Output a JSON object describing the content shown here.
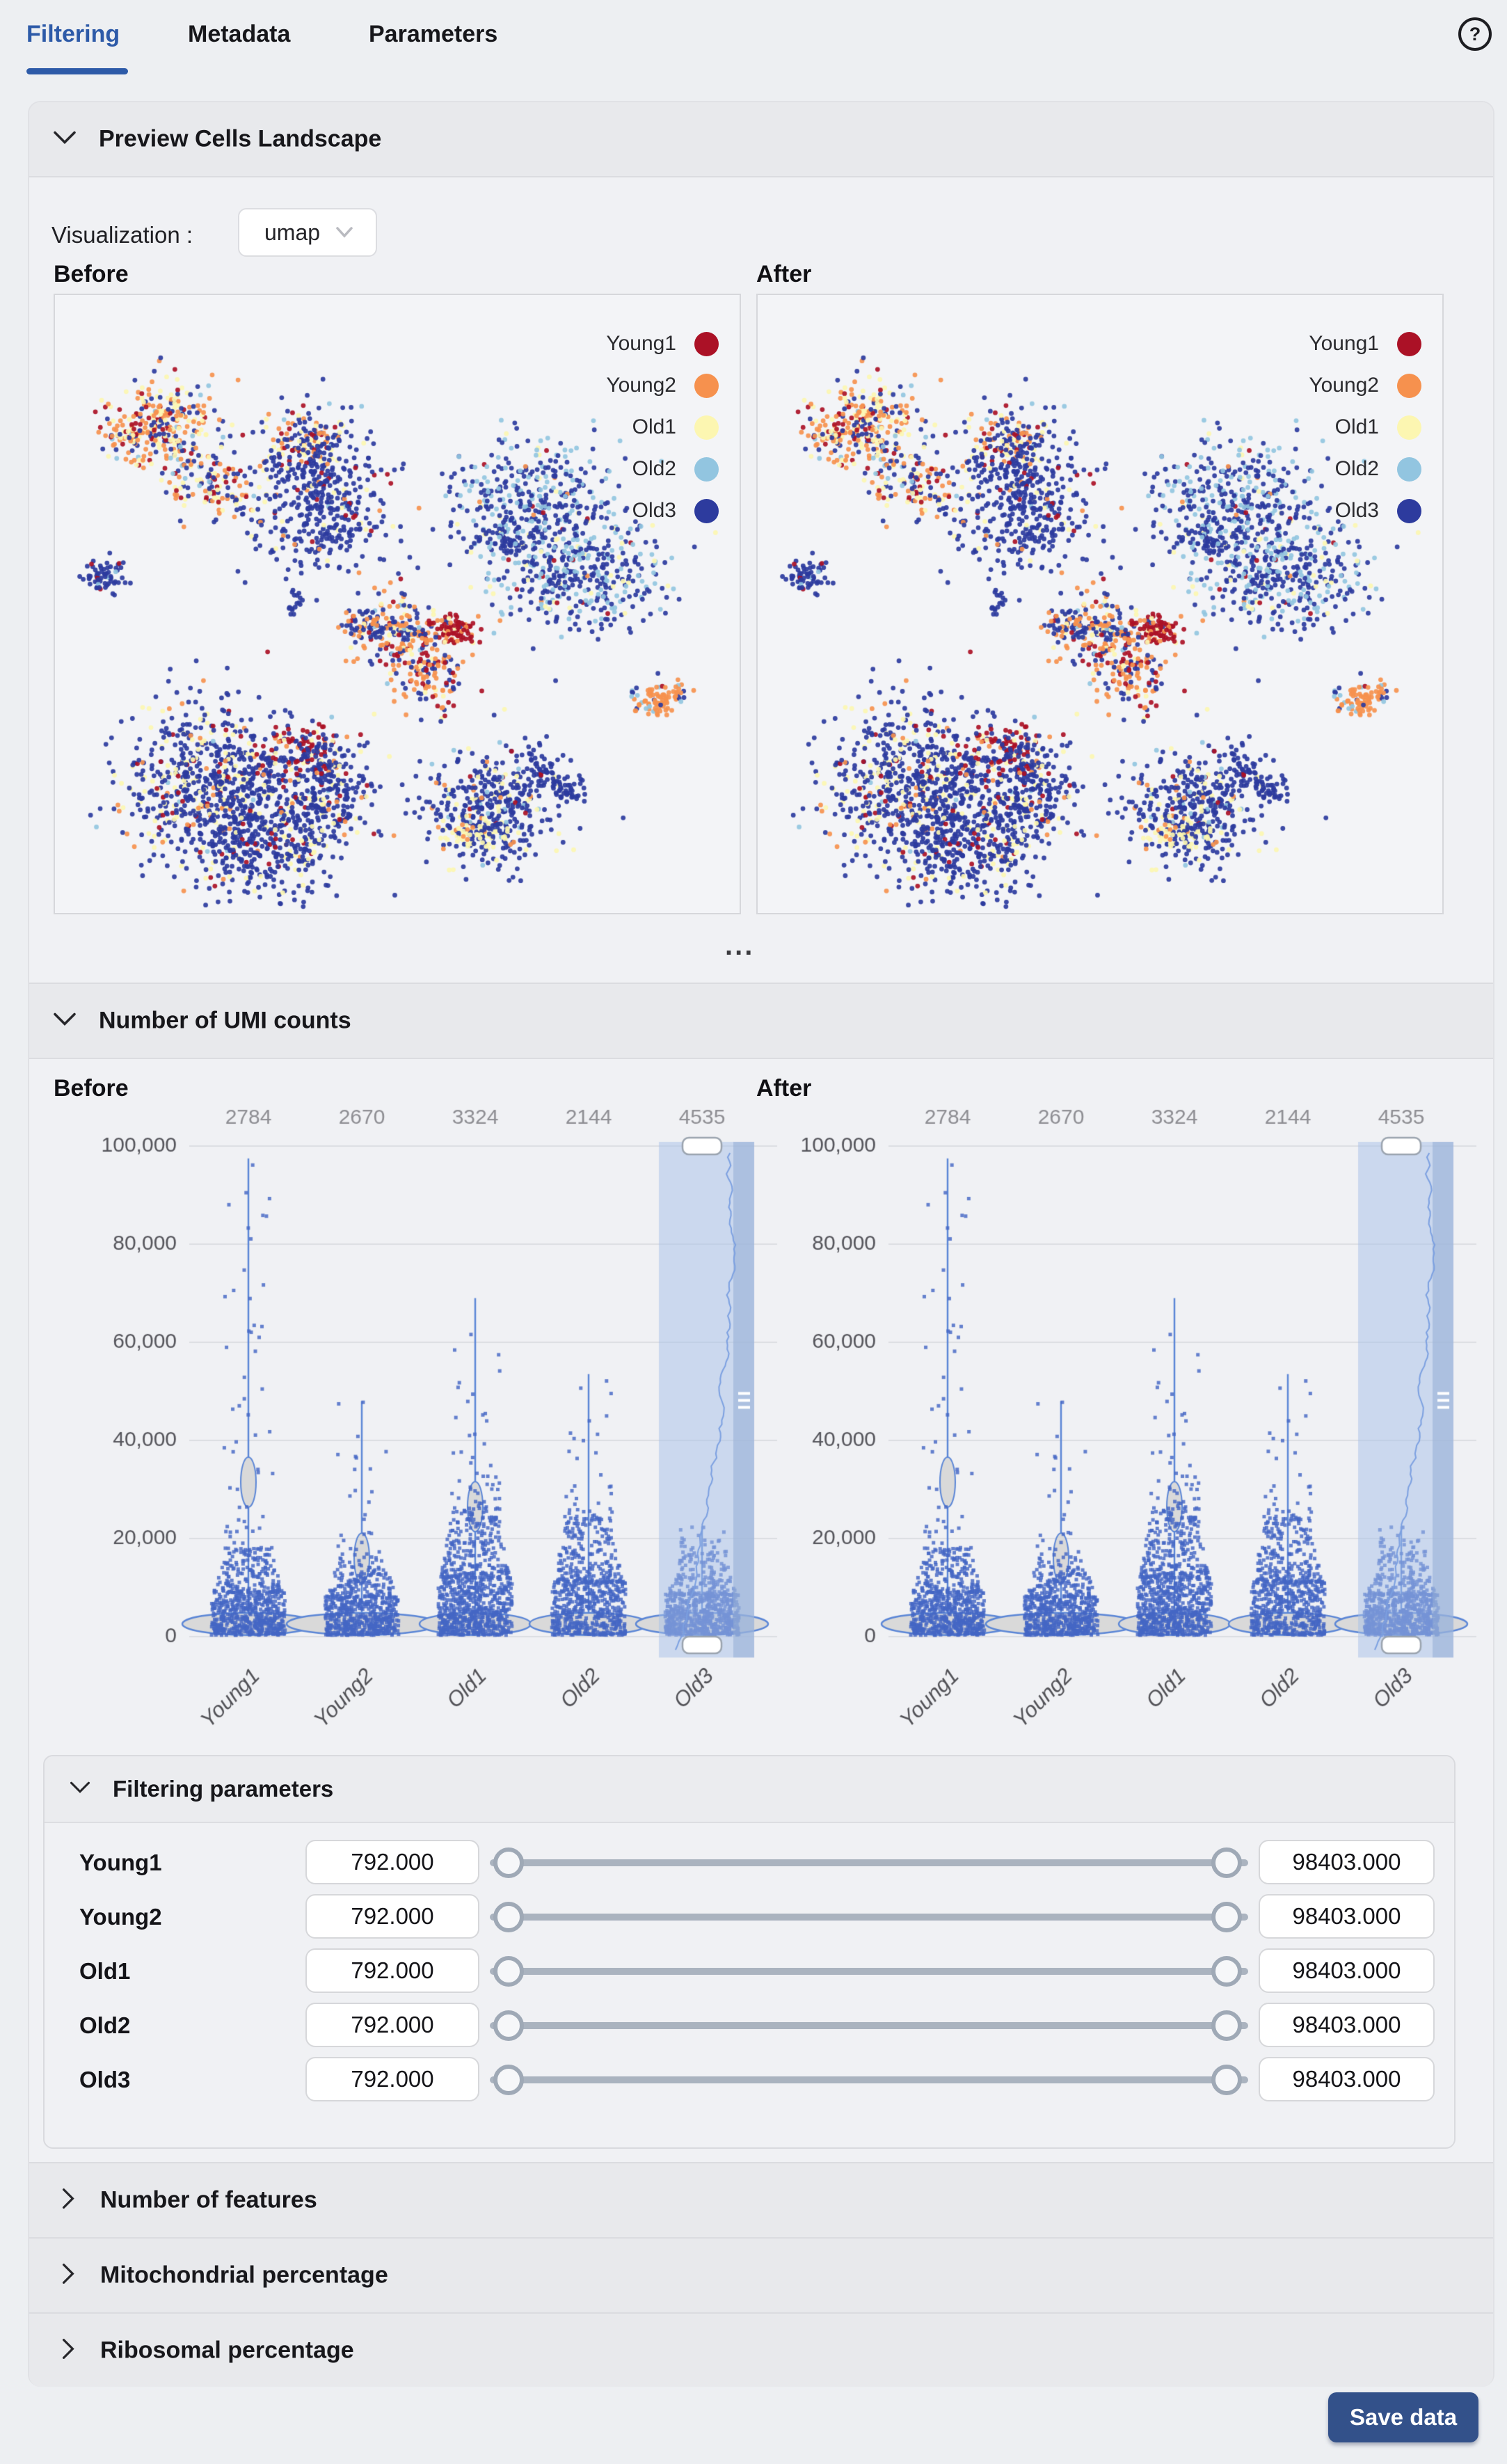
{
  "tabs": [
    {
      "label": "Filtering",
      "active": true
    },
    {
      "label": "Metadata",
      "active": false
    },
    {
      "label": "Parameters",
      "active": false
    }
  ],
  "help_label": "?",
  "sections": {
    "preview": {
      "title": "Preview Cells Landscape",
      "visualization_label": "Visualization :",
      "visualization_value": "umap",
      "before_label": "Before",
      "after_label": "After",
      "ellipsis": "..."
    },
    "umi": {
      "title": "Number of UMI counts",
      "before_label": "Before",
      "after_label": "After"
    },
    "filtering_params": {
      "title": "Filtering parameters",
      "rows": [
        {
          "label": "Young1",
          "min": "792.000",
          "max": "98403.000"
        },
        {
          "label": "Young2",
          "min": "792.000",
          "max": "98403.000"
        },
        {
          "label": "Old1",
          "min": "792.000",
          "max": "98403.000"
        },
        {
          "label": "Old2",
          "min": "792.000",
          "max": "98403.000"
        },
        {
          "label": "Old3",
          "min": "792.000",
          "max": "98403.000"
        }
      ]
    },
    "collapsed": [
      {
        "title": "Number of features"
      },
      {
        "title": "Mitochondrial percentage"
      },
      {
        "title": "Ribosomal percentage"
      }
    ],
    "save_label": "Save data"
  },
  "colors": {
    "accent_blue": "#2d5aa8",
    "scatter_point": "#4466c4",
    "violin_stroke": "#5b86d6",
    "violin_fill": "#d9d9d9",
    "grid": "#dcdde2",
    "tick_text": "#55555b",
    "count_text": "#8e8e93",
    "xlabel_text": "#515156",
    "selection_fill": "rgba(166,192,232,0.50)",
    "selection_track": "rgba(148,173,214,0.55)",
    "selection_line": "#7b9fe0",
    "handle_border": "#9aa3ae",
    "save_bg": "#33518a",
    "umap": {
      "Young1": "#ab1126",
      "Young2": "#f6914e",
      "Old1": "#fcf6b1",
      "Old2": "#92c5e0",
      "Old3": "#2d3b9e"
    }
  },
  "chart_data": [
    {
      "type": "scatter",
      "name": "umap-cells-landscape",
      "panels": [
        "Before",
        "After"
      ],
      "legend": [
        "Young1",
        "Young2",
        "Old1",
        "Old2",
        "Old3"
      ],
      "legend_position": "top-right",
      "clusters": [
        {
          "cx": 0.155,
          "cy": 0.205,
          "sx": 0.042,
          "sy": 0.033,
          "rot": -20,
          "n": 240,
          "mix": {
            "o": 0.3,
            "y": 0.24,
            "r": 0.17,
            "b": 0.24,
            "lb": 0.05
          }
        },
        {
          "cx": 0.225,
          "cy": 0.295,
          "sx": 0.05,
          "sy": 0.024,
          "rot": 35,
          "n": 170,
          "mix": {
            "o": 0.28,
            "y": 0.22,
            "r": 0.15,
            "b": 0.3,
            "lb": 0.05
          }
        },
        {
          "cx": 0.1,
          "cy": 0.225,
          "sx": 0.02,
          "sy": 0.011,
          "rot": 0,
          "n": 40,
          "mix": {
            "o": 0.5,
            "y": 0.2,
            "r": 0.15,
            "b": 0.15
          }
        },
        {
          "cx": 0.37,
          "cy": 0.24,
          "sx": 0.028,
          "sy": 0.024,
          "rot": 0,
          "n": 130,
          "mix": {
            "b": 0.45,
            "o": 0.2,
            "y": 0.2,
            "r": 0.1,
            "lb": 0.05
          }
        },
        {
          "cx": 0.39,
          "cy": 0.335,
          "sx": 0.05,
          "sy": 0.058,
          "rot": 0,
          "n": 430,
          "mix": {
            "b": 0.82,
            "y": 0.06,
            "o": 0.05,
            "r": 0.04,
            "lb": 0.03
          }
        },
        {
          "cx": 0.7,
          "cy": 0.33,
          "sx": 0.058,
          "sy": 0.047,
          "rot": 0,
          "n": 360,
          "mix": {
            "b": 0.58,
            "lb": 0.32,
            "y": 0.05,
            "r": 0.03,
            "o": 0.02
          }
        },
        {
          "cx": 0.76,
          "cy": 0.45,
          "sx": 0.068,
          "sy": 0.05,
          "rot": 0,
          "n": 420,
          "mix": {
            "b": 0.6,
            "lb": 0.32,
            "y": 0.05,
            "r": 0.02,
            "o": 0.01
          }
        },
        {
          "cx": 0.652,
          "cy": 0.4,
          "sx": 0.024,
          "sy": 0.011,
          "rot": 0,
          "n": 45,
          "mix": {
            "b": 0.8,
            "lb": 0.2
          }
        },
        {
          "cx": 0.075,
          "cy": 0.455,
          "sx": 0.017,
          "sy": 0.013,
          "rot": 0,
          "n": 65,
          "mix": {
            "b": 0.88,
            "lb": 0.06,
            "r": 0.06
          }
        },
        {
          "cx": 0.352,
          "cy": 0.5,
          "sx": 0.006,
          "sy": 0.01,
          "rot": 0,
          "n": 16,
          "mix": {
            "b": 1.0
          }
        },
        {
          "cx": 0.5,
          "cy": 0.545,
          "sx": 0.038,
          "sy": 0.033,
          "rot": 0,
          "n": 210,
          "mix": {
            "o": 0.36,
            "b": 0.34,
            "r": 0.12,
            "y": 0.12,
            "lb": 0.06
          }
        },
        {
          "cx": 0.585,
          "cy": 0.545,
          "sx": 0.017,
          "sy": 0.014,
          "rot": 0,
          "n": 80,
          "mix": {
            "r": 0.72,
            "o": 0.2,
            "y": 0.08
          }
        },
        {
          "cx": 0.55,
          "cy": 0.615,
          "sx": 0.024,
          "sy": 0.034,
          "rot": 0,
          "n": 120,
          "mix": {
            "o": 0.45,
            "b": 0.28,
            "r": 0.15,
            "y": 0.12
          }
        },
        {
          "cx": 0.455,
          "cy": 0.535,
          "sx": 0.02,
          "sy": 0.01,
          "rot": 0,
          "n": 40,
          "mix": {
            "b": 0.5,
            "o": 0.3,
            "y": 0.2
          }
        },
        {
          "cx": 0.885,
          "cy": 0.655,
          "sx": 0.02,
          "sy": 0.013,
          "rot": -30,
          "n": 85,
          "mix": {
            "o": 0.86,
            "b": 0.07,
            "lb": 0.05,
            "r": 0.02
          }
        },
        {
          "cx": 0.845,
          "cy": 0.645,
          "sx": 0.006,
          "sy": 0.005,
          "rot": 0,
          "n": 6,
          "mix": {
            "lb": 0.5,
            "b": 0.3,
            "r": 0.2
          }
        },
        {
          "cx": 0.235,
          "cy": 0.78,
          "sx": 0.07,
          "sy": 0.06,
          "rot": 0,
          "n": 640,
          "mix": {
            "b": 0.72,
            "y": 0.15,
            "lb": 0.03,
            "o": 0.05,
            "r": 0.05
          }
        },
        {
          "cx": 0.3,
          "cy": 0.875,
          "sx": 0.065,
          "sy": 0.048,
          "rot": 0,
          "n": 470,
          "mix": {
            "b": 0.78,
            "y": 0.12,
            "o": 0.05,
            "r": 0.05
          }
        },
        {
          "cx": 0.355,
          "cy": 0.735,
          "sx": 0.028,
          "sy": 0.02,
          "rot": 0,
          "n": 100,
          "mix": {
            "r": 0.5,
            "b": 0.28,
            "y": 0.12,
            "o": 0.1
          }
        },
        {
          "cx": 0.4,
          "cy": 0.8,
          "sx": 0.032,
          "sy": 0.045,
          "rot": 0,
          "n": 240,
          "mix": {
            "b": 0.84,
            "y": 0.08,
            "r": 0.05,
            "o": 0.03
          }
        },
        {
          "cx": 0.64,
          "cy": 0.82,
          "sx": 0.05,
          "sy": 0.047,
          "rot": 0,
          "n": 400,
          "mix": {
            "b": 0.8,
            "y": 0.1,
            "lb": 0.05,
            "r": 0.025,
            "o": 0.025
          }
        },
        {
          "cx": 0.615,
          "cy": 0.875,
          "sx": 0.024,
          "sy": 0.018,
          "rot": 0,
          "n": 85,
          "mix": {
            "y": 0.58,
            "b": 0.32,
            "o": 0.1
          }
        },
        {
          "cx": 0.715,
          "cy": 0.77,
          "sx": 0.028,
          "sy": 0.013,
          "rot": 45,
          "n": 55,
          "mix": {
            "b": 0.9,
            "r": 0.1
          }
        },
        {
          "cx": 0.755,
          "cy": 0.8,
          "sx": 0.011,
          "sy": 0.009,
          "rot": 0,
          "n": 22,
          "mix": {
            "b": 1.0
          }
        }
      ]
    },
    {
      "type": "violin",
      "name": "umi-counts",
      "panels": [
        "Before",
        "After"
      ],
      "categories": [
        "Young1",
        "Young2",
        "Old1",
        "Old2",
        "Old3"
      ],
      "counts": [
        2784,
        2670,
        3324,
        2144,
        4535
      ],
      "ylim": [
        0,
        100000
      ],
      "yticks": [
        0,
        20000,
        40000,
        60000,
        80000,
        100000
      ],
      "stem_max": [
        97500,
        48000,
        69000,
        53500,
        22500
      ],
      "dense_top": [
        9000,
        8000,
        12000,
        11000,
        8500
      ],
      "mid_top": [
        18000,
        16000,
        26000,
        24000,
        16500
      ],
      "bulge": [
        31500,
        16000,
        26500,
        0,
        0
      ],
      "base_rx": [
        95,
        108,
        80,
        85,
        95
      ],
      "n_dense": [
        520,
        500,
        620,
        480,
        560
      ],
      "n_mid": [
        180,
        150,
        260,
        230,
        150
      ],
      "n_out": [
        55,
        32,
        52,
        42,
        36
      ],
      "selected_category": "Old3",
      "selection_range": [
        0,
        100000
      ]
    }
  ]
}
